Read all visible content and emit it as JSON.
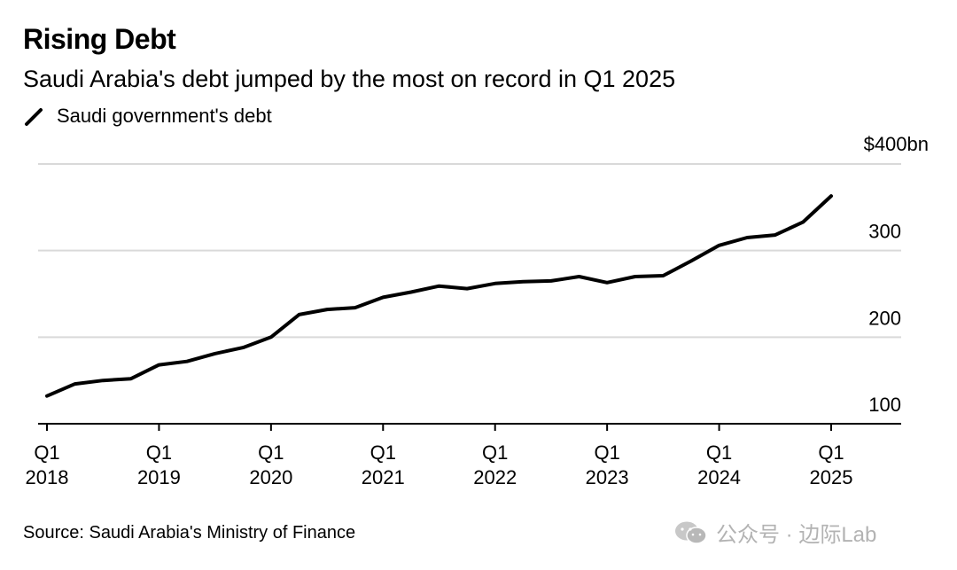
{
  "title": "Rising Debt",
  "subtitle": "Saudi Arabia's debt jumped by the most on record in Q1 2025",
  "legend": {
    "series_label": "Saudi government's debt"
  },
  "source": "Source: Saudi Arabia's Ministry of Finance",
  "watermark": "公众号 · 边际Lab",
  "colors": {
    "line": "#000000",
    "grid": "#d9d9d9",
    "axis": "#000000",
    "watermark": "#b3b3b3"
  },
  "chart_data": {
    "type": "line",
    "title": "Rising Debt",
    "subtitle": "Saudi Arabia's debt jumped by the most on record in Q1 2025",
    "ylabel": "",
    "y_unit_label": "$400bn",
    "ylim": [
      100,
      400
    ],
    "yticks": [
      100,
      200,
      300,
      400
    ],
    "ytick_labels": [
      "100",
      "200",
      "300",
      "$400bn"
    ],
    "xticks": [
      {
        "quarter": "2018Q1",
        "line1": "Q1",
        "line2": "2018"
      },
      {
        "quarter": "2019Q1",
        "line1": "Q1",
        "line2": "2019"
      },
      {
        "quarter": "2020Q1",
        "line1": "Q1",
        "line2": "2020"
      },
      {
        "quarter": "2021Q1",
        "line1": "Q1",
        "line2": "2021"
      },
      {
        "quarter": "2022Q1",
        "line1": "Q1",
        "line2": "2022"
      },
      {
        "quarter": "2023Q1",
        "line1": "Q1",
        "line2": "2023"
      },
      {
        "quarter": "2024Q1",
        "line1": "Q1",
        "line2": "2024"
      },
      {
        "quarter": "2025Q1",
        "line1": "Q1",
        "line2": "2025"
      }
    ],
    "grid": true,
    "legend_position": "top-left",
    "series": [
      {
        "name": "Saudi government's debt",
        "x": [
          "2018Q1",
          "2018Q2",
          "2018Q3",
          "2018Q4",
          "2019Q1",
          "2019Q2",
          "2019Q3",
          "2019Q4",
          "2020Q1",
          "2020Q2",
          "2020Q3",
          "2020Q4",
          "2021Q1",
          "2021Q2",
          "2021Q3",
          "2021Q4",
          "2022Q1",
          "2022Q2",
          "2022Q3",
          "2022Q4",
          "2023Q1",
          "2023Q2",
          "2023Q3",
          "2023Q4",
          "2024Q1",
          "2024Q2",
          "2024Q3",
          "2024Q4",
          "2025Q1"
        ],
        "values": [
          132,
          146,
          150,
          152,
          168,
          172,
          181,
          188,
          200,
          226,
          232,
          234,
          246,
          252,
          259,
          256,
          262,
          264,
          265,
          270,
          263,
          270,
          271,
          288,
          306,
          315,
          318,
          333,
          363
        ]
      }
    ]
  }
}
